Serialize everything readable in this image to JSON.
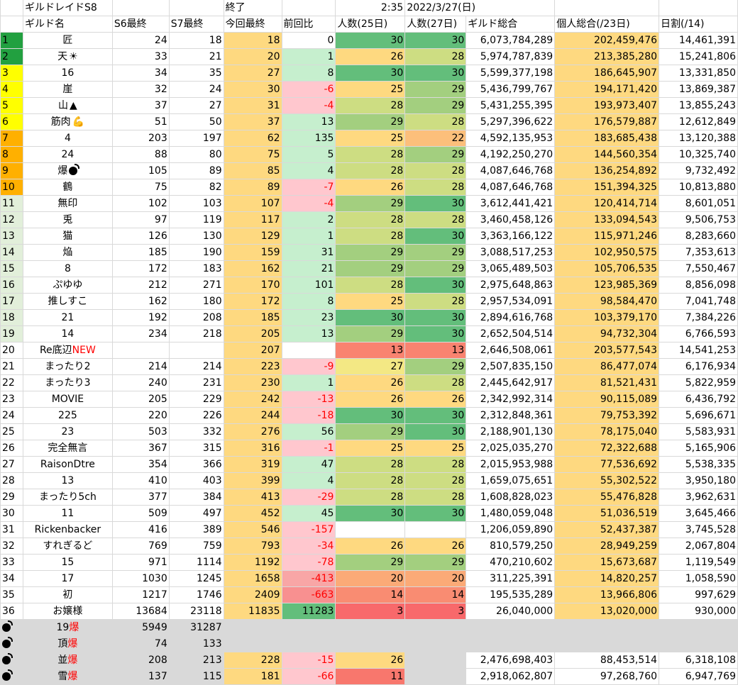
{
  "sheet": {
    "title": "ギルドレイドS8",
    "status": "終了",
    "time": "2:35",
    "date": "2022/3/27(日)"
  },
  "headers": [
    "ギルド名",
    "S6最終",
    "S7最終",
    "今回最終",
    "前回比",
    "人数(25日)",
    "人数(27日)",
    "ギルド総合",
    "個人総合(/23日)",
    "日割(/14)"
  ],
  "rows": [
    {
      "rank": "1",
      "name": "匠",
      "s6": "24",
      "s7": "18",
      "cur": "18",
      "diff": "0",
      "p25": "30",
      "p27": "30",
      "total": "6,073,784,289",
      "indiv": "202,459,476",
      "daily": "14,461,391",
      "rankColor": "#22a040",
      "diffColor": "#ffffff",
      "p25Color": "#63be7b",
      "p27Color": "#63be7b"
    },
    {
      "rank": "2",
      "name": "天",
      "s6": "33",
      "s7": "21",
      "cur": "20",
      "diff": "1",
      "p25": "26",
      "p27": "28",
      "total": "5,974,787,839",
      "indiv": "213,385,280",
      "daily": "15,241,806",
      "rankColor": "#22a040",
      "diffColor": "#c6efce",
      "p25Color": "#fed980",
      "p27Color": "#cddd82"
    },
    {
      "rank": "3",
      "name": "16",
      "s6": "34",
      "s7": "35",
      "cur": "27",
      "diff": "8",
      "p25": "30",
      "p27": "30",
      "total": "5,599,377,198",
      "indiv": "186,645,907",
      "daily": "13,331,850",
      "rankColor": "#ffff00",
      "diffColor": "#c6efce",
      "p25Color": "#63be7b",
      "p27Color": "#63be7b"
    },
    {
      "rank": "4",
      "name": "崖",
      "s6": "32",
      "s7": "24",
      "cur": "30",
      "diff": "-6",
      "p25": "25",
      "p27": "29",
      "total": "5,436,799,767",
      "indiv": "194,171,420",
      "daily": "13,869,387",
      "rankColor": "#ffff00",
      "diffColor": "#ffc7ce",
      "p25Color": "#fed980",
      "p27Color": "#a3cf7f"
    },
    {
      "rank": "5",
      "name": "山",
      "s6": "37",
      "s7": "27",
      "cur": "31",
      "diff": "-4",
      "p25": "28",
      "p27": "29",
      "total": "5,431,255,395",
      "indiv": "193,973,407",
      "daily": "13,855,243",
      "rankColor": "#ffff00",
      "diffColor": "#ffc7ce",
      "p25Color": "#cddd82",
      "p27Color": "#a3cf7f"
    },
    {
      "rank": "6",
      "name": "筋肉",
      "s6": "51",
      "s7": "50",
      "cur": "37",
      "diff": "13",
      "p25": "29",
      "p27": "28",
      "total": "5,297,396,622",
      "indiv": "176,579,887",
      "daily": "12,612,849",
      "rankColor": "#ffff00",
      "diffColor": "#c6efce",
      "p25Color": "#a3cf7f",
      "p27Color": "#cddd82"
    },
    {
      "rank": "7",
      "name": "4",
      "s6": "203",
      "s7": "197",
      "cur": "62",
      "diff": "135",
      "p25": "25",
      "p27": "22",
      "total": "4,592,135,953",
      "indiv": "183,685,438",
      "daily": "13,120,388",
      "rankColor": "#ffb000",
      "diffColor": "#c6efce",
      "p25Color": "#fed980",
      "p27Color": "#fcbf7b"
    },
    {
      "rank": "8",
      "name": "24",
      "s6": "88",
      "s7": "80",
      "cur": "75",
      "diff": "5",
      "p25": "28",
      "p27": "29",
      "total": "4,192,250,270",
      "indiv": "144,560,354",
      "daily": "10,325,740",
      "rankColor": "#ffb000",
      "diffColor": "#c6efce",
      "p25Color": "#cddd82",
      "p27Color": "#a3cf7f"
    },
    {
      "rank": "9",
      "name": "爆",
      "s6": "105",
      "s7": "89",
      "cur": "85",
      "diff": "4",
      "p25": "28",
      "p27": "28",
      "total": "4,087,646,768",
      "indiv": "136,254,892",
      "daily": "9,732,492",
      "rankColor": "#ffb000",
      "diffColor": "#c6efce",
      "p25Color": "#cddd82",
      "p27Color": "#cddd82"
    },
    {
      "rank": "10",
      "name": "鶴",
      "s6": "75",
      "s7": "82",
      "cur": "89",
      "diff": "-7",
      "p25": "26",
      "p27": "28",
      "total": "4,087,646,768",
      "indiv": "151,394,325",
      "daily": "10,813,880",
      "rankColor": "#ffb000",
      "diffColor": "#ffc7ce",
      "p25Color": "#fed980",
      "p27Color": "#cddd82"
    },
    {
      "rank": "11",
      "name": "無印",
      "s6": "102",
      "s7": "103",
      "cur": "107",
      "diff": "-4",
      "p25": "29",
      "p27": "30",
      "total": "3,612,441,421",
      "indiv": "120,414,714",
      "daily": "8,601,051",
      "rankColor": "#e2efda",
      "diffColor": "#ffc7ce",
      "p25Color": "#a3cf7f",
      "p27Color": "#63be7b"
    },
    {
      "rank": "12",
      "name": "兎",
      "s6": "97",
      "s7": "119",
      "cur": "117",
      "diff": "2",
      "p25": "28",
      "p27": "28",
      "total": "3,460,458,126",
      "indiv": "133,094,543",
      "daily": "9,506,753",
      "rankColor": "#e2efda",
      "diffColor": "#c6efce",
      "p25Color": "#cddd82",
      "p27Color": "#cddd82"
    },
    {
      "rank": "13",
      "name": "猫",
      "s6": "126",
      "s7": "130",
      "cur": "129",
      "diff": "1",
      "p25": "28",
      "p27": "30",
      "total": "3,363,166,122",
      "indiv": "115,971,246",
      "daily": "8,283,660",
      "rankColor": "#e2efda",
      "diffColor": "#c6efce",
      "p25Color": "#cddd82",
      "p27Color": "#63be7b"
    },
    {
      "rank": "14",
      "name": "焔",
      "s6": "185",
      "s7": "190",
      "cur": "159",
      "diff": "31",
      "p25": "29",
      "p27": "29",
      "total": "3,088,517,253",
      "indiv": "102,950,575",
      "daily": "7,353,613",
      "rankColor": "#e2efda",
      "diffColor": "#c6efce",
      "p25Color": "#a3cf7f",
      "p27Color": "#a3cf7f"
    },
    {
      "rank": "15",
      "name": "8",
      "s6": "172",
      "s7": "183",
      "cur": "162",
      "diff": "21",
      "p25": "29",
      "p27": "29",
      "total": "3,065,489,503",
      "indiv": "105,706,535",
      "daily": "7,550,467",
      "rankColor": "#e2efda",
      "diffColor": "#c6efce",
      "p25Color": "#a3cf7f",
      "p27Color": "#a3cf7f"
    },
    {
      "rank": "16",
      "name": "ぷゆゆ",
      "s6": "212",
      "s7": "271",
      "cur": "170",
      "diff": "101",
      "p25": "28",
      "p27": "30",
      "total": "2,975,648,863",
      "indiv": "123,985,369",
      "daily": "8,856,098",
      "rankColor": "#e2efda",
      "diffColor": "#c6efce",
      "p25Color": "#cddd82",
      "p27Color": "#63be7b"
    },
    {
      "rank": "17",
      "name": "推しすこ",
      "s6": "162",
      "s7": "180",
      "cur": "172",
      "diff": "8",
      "p25": "25",
      "p27": "28",
      "total": "2,957,534,091",
      "indiv": "98,584,470",
      "daily": "7,041,748",
      "rankColor": "#e2efda",
      "diffColor": "#c6efce",
      "p25Color": "#fed980",
      "p27Color": "#cddd82"
    },
    {
      "rank": "18",
      "name": "21",
      "s6": "192",
      "s7": "208",
      "cur": "185",
      "diff": "23",
      "p25": "30",
      "p27": "30",
      "total": "2,894,616,768",
      "indiv": "103,379,170",
      "daily": "7,384,226",
      "rankColor": "#e2efda",
      "diffColor": "#c6efce",
      "p25Color": "#63be7b",
      "p27Color": "#63be7b"
    },
    {
      "rank": "19",
      "name": "14",
      "s6": "234",
      "s7": "218",
      "cur": "205",
      "diff": "13",
      "p25": "29",
      "p27": "30",
      "total": "2,652,504,514",
      "indiv": "94,732,304",
      "daily": "6,766,593",
      "rankColor": "#e2efda",
      "diffColor": "#c6efce",
      "p25Color": "#a3cf7f",
      "p27Color": "#63be7b"
    },
    {
      "rank": "20",
      "name": "Re底辺",
      "nameNew": "NEW",
      "s6": "",
      "s7": "",
      "cur": "207",
      "diff": "",
      "p25": "13",
      "p27": "13",
      "total": "2,646,508,061",
      "indiv": "203,577,543",
      "daily": "14,541,253",
      "rankColor": "#ffffff",
      "diffColor": "#ffffff",
      "p25Color": "#f98370",
      "p27Color": "#f98370"
    },
    {
      "rank": "21",
      "name": "まったり2",
      "s6": "214",
      "s7": "214",
      "cur": "223",
      "diff": "-9",
      "p25": "27",
      "p27": "29",
      "total": "2,507,835,150",
      "indiv": "86,477,074",
      "daily": "6,176,934",
      "rankColor": "#ffffff",
      "diffColor": "#ffc7ce",
      "p25Color": "#f3e884",
      "p27Color": "#a3cf7f"
    },
    {
      "rank": "22",
      "name": "まったり3",
      "s6": "240",
      "s7": "231",
      "cur": "230",
      "diff": "1",
      "p25": "26",
      "p27": "28",
      "total": "2,445,642,917",
      "indiv": "81,521,431",
      "daily": "5,822,959",
      "rankColor": "#ffffff",
      "diffColor": "#c6efce",
      "p25Color": "#fed980",
      "p27Color": "#cddd82"
    },
    {
      "rank": "23",
      "name": "MOVIE",
      "s6": "205",
      "s7": "229",
      "cur": "242",
      "diff": "-13",
      "p25": "26",
      "p27": "26",
      "total": "2,342,992,314",
      "indiv": "90,115,089",
      "daily": "6,436,792",
      "rankColor": "#ffffff",
      "diffColor": "#ffc7ce",
      "p25Color": "#fed980",
      "p27Color": "#fed980"
    },
    {
      "rank": "24",
      "name": "225",
      "s6": "220",
      "s7": "226",
      "cur": "244",
      "diff": "-18",
      "p25": "30",
      "p27": "30",
      "total": "2,312,848,361",
      "indiv": "79,753,392",
      "daily": "5,696,671",
      "rankColor": "#ffffff",
      "diffColor": "#ffc7ce",
      "p25Color": "#63be7b",
      "p27Color": "#63be7b"
    },
    {
      "rank": "25",
      "name": "23",
      "s6": "503",
      "s7": "332",
      "cur": "276",
      "diff": "56",
      "p25": "29",
      "p27": "30",
      "total": "2,188,901,130",
      "indiv": "78,175,040",
      "daily": "5,583,931",
      "rankColor": "#ffffff",
      "diffColor": "#c6efce",
      "p25Color": "#a3cf7f",
      "p27Color": "#63be7b"
    },
    {
      "rank": "26",
      "name": "完全無言",
      "s6": "367",
      "s7": "315",
      "cur": "316",
      "diff": "-1",
      "p25": "25",
      "p27": "25",
      "total": "2,025,035,270",
      "indiv": "72,322,688",
      "daily": "5,165,906",
      "rankColor": "#ffffff",
      "diffColor": "#ffc7ce",
      "p25Color": "#fed980",
      "p27Color": "#fed980"
    },
    {
      "rank": "27",
      "name": "RaisonDtre",
      "s6": "354",
      "s7": "366",
      "cur": "319",
      "diff": "47",
      "p25": "28",
      "p27": "28",
      "total": "2,015,953,988",
      "indiv": "77,536,692",
      "daily": "5,538,335",
      "rankColor": "#ffffff",
      "diffColor": "#c6efce",
      "p25Color": "#cddd82",
      "p27Color": "#cddd82"
    },
    {
      "rank": "28",
      "name": "13",
      "s6": "410",
      "s7": "403",
      "cur": "399",
      "diff": "4",
      "p25": "28",
      "p27": "28",
      "total": "1,659,075,651",
      "indiv": "55,302,522",
      "daily": "3,950,180",
      "rankColor": "#ffffff",
      "diffColor": "#c6efce",
      "p25Color": "#cddd82",
      "p27Color": "#cddd82"
    },
    {
      "rank": "29",
      "name": "まったり5ch",
      "s6": "377",
      "s7": "384",
      "cur": "413",
      "diff": "-29",
      "p25": "28",
      "p27": "28",
      "total": "1,608,828,023",
      "indiv": "55,476,828",
      "daily": "3,962,631",
      "rankColor": "#ffffff",
      "diffColor": "#ffc7ce",
      "p25Color": "#cddd82",
      "p27Color": "#cddd82"
    },
    {
      "rank": "30",
      "name": "11",
      "s6": "509",
      "s7": "497",
      "cur": "452",
      "diff": "45",
      "p25": "30",
      "p27": "30",
      "total": "1,480,059,048",
      "indiv": "51,036,519",
      "daily": "3,645,466",
      "rankColor": "#ffffff",
      "diffColor": "#c6efce",
      "p25Color": "#63be7b",
      "p27Color": "#63be7b"
    },
    {
      "rank": "31",
      "name": "Rickenbacker",
      "s6": "416",
      "s7": "389",
      "cur": "546",
      "diff": "-157",
      "p25": "",
      "p27": "",
      "total": "1,206,059,890",
      "indiv": "52,437,387",
      "daily": "3,745,528",
      "rankColor": "#ffffff",
      "diffColor": "#ffc7ce",
      "p25Color": "#ffffff",
      "p27Color": "#ffffff"
    },
    {
      "rank": "32",
      "name": "すれぎるど",
      "s6": "769",
      "s7": "759",
      "cur": "793",
      "diff": "-34",
      "p25": "26",
      "p27": "26",
      "total": "810,579,250",
      "indiv": "28,949,259",
      "daily": "2,067,804",
      "rankColor": "#ffffff",
      "diffColor": "#ffc7ce",
      "p25Color": "#fed980",
      "p27Color": "#fed980"
    },
    {
      "rank": "33",
      "name": "15",
      "s6": "971",
      "s7": "1114",
      "cur": "1192",
      "diff": "-78",
      "p25": "29",
      "p27": "29",
      "total": "470,210,602",
      "indiv": "15,673,687",
      "daily": "1,119,549",
      "rankColor": "#ffffff",
      "diffColor": "#ffc7ce",
      "p25Color": "#a3cf7f",
      "p27Color": "#a3cf7f"
    },
    {
      "rank": "34",
      "name": "17",
      "s6": "1030",
      "s7": "1245",
      "cur": "1658",
      "diff": "-413",
      "p25": "20",
      "p27": "20",
      "total": "311,225,391",
      "indiv": "14,820,257",
      "daily": "1,058,590",
      "rankColor": "#ffffff",
      "diffColor": "#f8a6a6",
      "p25Color": "#fbaa77",
      "p27Color": "#fbaa77"
    },
    {
      "rank": "35",
      "name": "初",
      "s6": "1217",
      "s7": "1746",
      "cur": "2409",
      "diff": "-663",
      "p25": "14",
      "p27": "14",
      "total": "195,535,289",
      "indiv": "13,966,806",
      "daily": "997,629",
      "rankColor": "#ffffff",
      "diffColor": "#f89090",
      "p25Color": "#f98c72",
      "p27Color": "#f98c72"
    },
    {
      "rank": "36",
      "name": "お嬢様",
      "s6": "13684",
      "s7": "23118",
      "cur": "11835",
      "diff": "11283",
      "p25": "3",
      "p27": "3",
      "total": "26,040,000",
      "indiv": "13,020,000",
      "daily": "930,000",
      "rankColor": "#ffffff",
      "diffColor": "#63be7b",
      "p25Color": "#f8696b",
      "p27Color": "#f8696b"
    }
  ],
  "bombRows": [
    {
      "name": "19",
      "suffix": "爆",
      "s6": "5949",
      "s7": "31287",
      "cur": "",
      "diff": "",
      "p25": "",
      "p27": "",
      "total": "",
      "indiv": "",
      "daily": ""
    },
    {
      "name": "頂",
      "suffix": "爆",
      "s6": "74",
      "s7": "133",
      "cur": "",
      "diff": "",
      "p25": "",
      "p27": "",
      "total": "",
      "indiv": "",
      "daily": ""
    },
    {
      "name": "並",
      "suffix": "爆",
      "s6": "208",
      "s7": "213",
      "cur": "228",
      "diff": "-15",
      "p25": "26",
      "p27": "",
      "total": "2,476,698,403",
      "indiv": "88,453,514",
      "daily": "6,318,108"
    },
    {
      "name": "雪",
      "suffix": "爆",
      "s6": "137",
      "s7": "115",
      "cur": "181",
      "diff": "-66",
      "p25": "11",
      "p27": "",
      "total": "2,918,062,807",
      "indiv": "97,268,760",
      "daily": "6,947,769"
    }
  ],
  "colors": {
    "curFinal": "#fed980",
    "bombRowBg": "#d9d9d9",
    "indivCol": "#fed980"
  },
  "icons": {
    "row2": "sun-icon",
    "row5": "mountain-icon",
    "row6": "flexed-arm-icon",
    "row9": "bomb-icon"
  }
}
